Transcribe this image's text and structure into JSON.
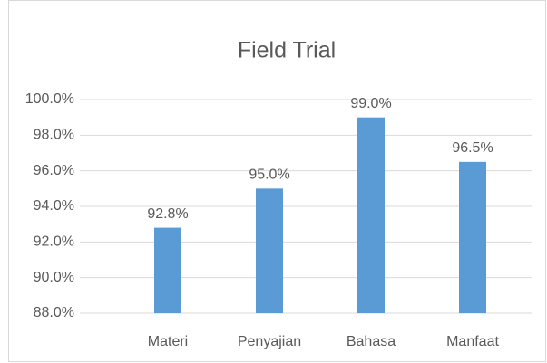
{
  "chart_data": {
    "type": "bar",
    "title": "Field Trial",
    "categories": [
      "Materi",
      "Penyajian",
      "Bahasa",
      "Manfaat"
    ],
    "values": [
      92.8,
      95.0,
      99.0,
      96.5
    ],
    "value_labels": [
      "92.8%",
      "95.0%",
      "99.0%",
      "96.5%"
    ],
    "color": "#5b9bd5",
    "ylim": [
      88,
      100
    ],
    "yticks": [
      {
        "value": 88,
        "label": "88.0%"
      },
      {
        "value": 90,
        "label": "90.0%"
      },
      {
        "value": 92,
        "label": "92.0%"
      },
      {
        "value": 94,
        "label": "94.0%"
      },
      {
        "value": 96,
        "label": "96.0%"
      },
      {
        "value": 98,
        "label": "98.0%"
      },
      {
        "value": 100,
        "label": "100.0%"
      }
    ],
    "grid": true
  }
}
